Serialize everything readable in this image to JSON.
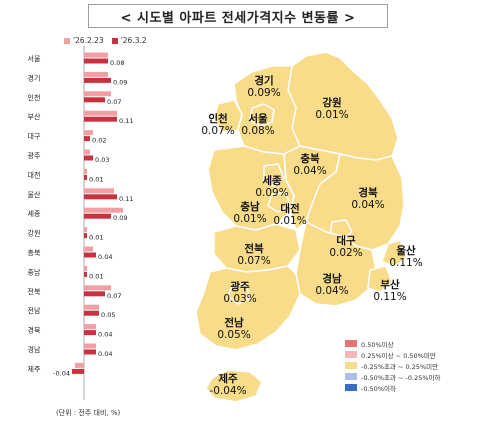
{
  "title": "< 시도별 아파트 전세가격지수 변동률 >",
  "unit_note": "(단위 : 전주 대비, %)",
  "colors": {
    "prev": "#f0a0a3",
    "curr": "#c8323e",
    "map_fill": "#f8dc8a",
    "map_stroke": "#ffffff"
  },
  "chart_data": {
    "type": "bar",
    "orientation": "horizontal",
    "categories": [
      "서울",
      "경기",
      "인천",
      "부산",
      "대구",
      "광주",
      "대전",
      "울산",
      "세종",
      "강원",
      "충북",
      "충남",
      "전북",
      "전남",
      "경북",
      "경남",
      "제주"
    ],
    "series": [
      {
        "name": "'26.2.23",
        "values": [
          0.08,
          0.08,
          0.09,
          0.11,
          0.03,
          0.02,
          0.01,
          0.1,
          0.13,
          0.01,
          0.03,
          0.01,
          0.09,
          0.05,
          0.04,
          0.04,
          -0.03
        ]
      },
      {
        "name": "'26.3.2",
        "values": [
          0.08,
          0.09,
          0.07,
          0.11,
          0.02,
          0.03,
          0.01,
          0.11,
          0.09,
          0.01,
          0.04,
          0.01,
          0.07,
          0.05,
          0.04,
          0.04,
          -0.04
        ]
      }
    ],
    "data_labels": [
      "0.08",
      "0.09",
      "0.07",
      "0.11",
      "0.02",
      "0.03",
      "0.01",
      "0.11",
      "0.09",
      "0.01",
      "0.04",
      "0.01",
      "0.07",
      "0.05",
      "0.04",
      "0.04",
      "-0.04"
    ]
  },
  "map": {
    "regions": [
      {
        "name": "경기",
        "value": "0.09%"
      },
      {
        "name": "강원",
        "value": "0.01%"
      },
      {
        "name": "인천",
        "value": "0.07%"
      },
      {
        "name": "서울",
        "value": "0.08%"
      },
      {
        "name": "충북",
        "value": "0.04%"
      },
      {
        "name": "세종",
        "value": "0.09%"
      },
      {
        "name": "경북",
        "value": "0.04%"
      },
      {
        "name": "충남",
        "value": "0.01%"
      },
      {
        "name": "대전",
        "value": "0.01%"
      },
      {
        "name": "대구",
        "value": "0.02%"
      },
      {
        "name": "전북",
        "value": "0.07%"
      },
      {
        "name": "울산",
        "value": "0.11%"
      },
      {
        "name": "광주",
        "value": "0.03%"
      },
      {
        "name": "경남",
        "value": "0.04%"
      },
      {
        "name": "부산",
        "value": "0.11%"
      },
      {
        "name": "전남",
        "value": "0.05%"
      },
      {
        "name": "제주",
        "value": "-0.04%"
      }
    ],
    "legend": [
      {
        "label": "0.50%이상",
        "color": "#e57373"
      },
      {
        "label": "0.25%이상 ~ 0.50%미만",
        "color": "#f4b6b8"
      },
      {
        "label": "-0.25%초과 ~ 0.25%미만",
        "color": "#f8dc8a"
      },
      {
        "label": "-0.50%초과 ~ -0.25%이하",
        "color": "#aebfe6"
      },
      {
        "label": "-0.50%이하",
        "color": "#3b6cc4"
      }
    ]
  }
}
